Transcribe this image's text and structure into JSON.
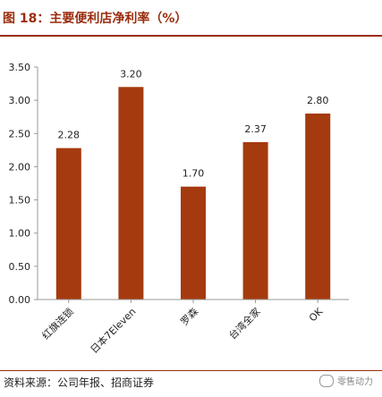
{
  "title": "图 18：主要便利店净利率（%）",
  "source": "资料来源：公司年报、招商证券",
  "watermark": "零售动力",
  "colors": {
    "bar": "#a53a0f",
    "accent": "#9a2d0d",
    "axis": "#999999",
    "text": "#222222"
  },
  "chart_data": {
    "type": "bar",
    "categories": [
      "红旗连锁",
      "日本7Eleven",
      "罗森",
      "台湾全家",
      "OK"
    ],
    "values": [
      2.28,
      3.2,
      1.7,
      2.37,
      2.8
    ],
    "value_labels": [
      "2.28",
      "3.20",
      "1.70",
      "2.37",
      "2.80"
    ],
    "yticks": [
      "0.00",
      "0.50",
      "1.00",
      "1.50",
      "2.00",
      "2.50",
      "3.00",
      "3.50"
    ],
    "ylim": [
      0,
      3.5
    ],
    "grid": false,
    "legend": "none"
  }
}
